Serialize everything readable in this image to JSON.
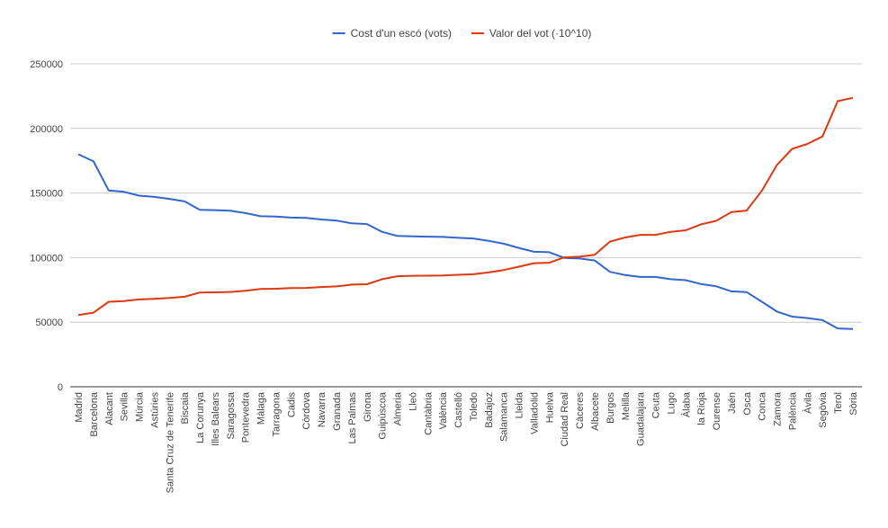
{
  "chart_data": {
    "type": "line",
    "title": "",
    "xlabel": "",
    "ylabel": "",
    "ylim": [
      0,
      250000
    ],
    "yticks": [
      0,
      50000,
      100000,
      150000,
      200000,
      250000
    ],
    "ytick_labels": [
      "0",
      "50000",
      "100000",
      "150000",
      "200000",
      "250000"
    ],
    "grid": true,
    "legend_position": "top",
    "categories": [
      "Madrid",
      "Barcelona",
      "Alacant",
      "Sevilla",
      "Múrcia",
      "Astúries",
      "Santa Cruz de Tenerife",
      "Biscaia",
      "La Corunya",
      "Illes Balears",
      "Saragossa",
      "Pontevedra",
      "Màlaga",
      "Tarragona",
      "Cadis",
      "Còrdova",
      "Navarra",
      "Granada",
      "Las Palmas",
      "Girona",
      "Guipúscoa",
      "Almeria",
      "Lleó",
      "Cantàbria",
      "València",
      "Castelló",
      "Toledo",
      "Badajoz",
      "Salamanca",
      "Lleida",
      "Valladolid",
      "Huelva",
      "Ciudad Real",
      "Càceres",
      "Albacete",
      "Burgos",
      "Melilla",
      "Guadalajara",
      "Ceuta",
      "Lugo",
      "Àlaba",
      "la Rioja",
      "Ourense",
      "Jaén",
      "Osca",
      "Conca",
      "Zamora",
      "Palència",
      "Àvila",
      "Segòvia",
      "Terol",
      "Sòria"
    ],
    "series": [
      {
        "name": "Cost d'un escó (vots)",
        "color": "#3366cc",
        "values": [
          180000,
          174500,
          152000,
          151000,
          148000,
          147000,
          145500,
          143500,
          137000,
          136800,
          136300,
          134500,
          132000,
          131800,
          131000,
          130700,
          129500,
          128700,
          126500,
          126000,
          120000,
          116800,
          116500,
          116200,
          116000,
          115300,
          114800,
          113000,
          110800,
          107500,
          104500,
          104200,
          99800,
          99300,
          97800,
          89000,
          86500,
          85000,
          85000,
          83300,
          82500,
          79500,
          77800,
          73900,
          73300,
          65900,
          58200,
          54300,
          53200,
          51600,
          45200,
          44700
        ]
      },
      {
        "name": "Valor del vot (·10^10)",
        "color": "#dc3912",
        "values": [
          55600,
          57400,
          65800,
          66300,
          67600,
          68100,
          68700,
          69700,
          73000,
          73100,
          73400,
          74300,
          75800,
          75900,
          76400,
          76500,
          77200,
          77700,
          79100,
          79400,
          83300,
          85600,
          85900,
          86000,
          86200,
          86700,
          87100,
          88500,
          90300,
          93000,
          95700,
          96000,
          100200,
          100700,
          102200,
          112400,
          115600,
          117600,
          117600,
          120000,
          121200,
          125800,
          128500,
          135300,
          136400,
          151700,
          171800,
          184200,
          188000,
          193800,
          221200,
          223700
        ]
      }
    ]
  }
}
